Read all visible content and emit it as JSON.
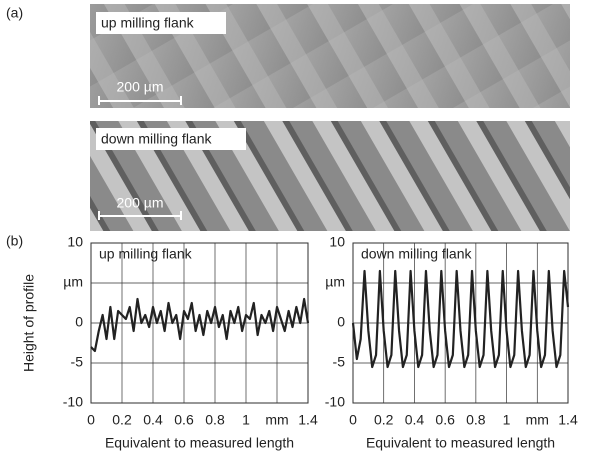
{
  "panel_a": {
    "label": "(a)",
    "images": [
      {
        "label": "up milling flank",
        "scale": "200 µm"
      },
      {
        "label": "down milling flank",
        "scale": "200 µm"
      }
    ]
  },
  "panel_b": {
    "label": "(b)",
    "ylabel": "Height of profile"
  },
  "chart_data": [
    {
      "type": "line",
      "title": "up milling flank",
      "xlabel": "Equivalent to measured length",
      "x": [
        0,
        0.025,
        0.05,
        0.075,
        0.1,
        0.125,
        0.15,
        0.175,
        0.2,
        0.225,
        0.25,
        0.275,
        0.3,
        0.325,
        0.35,
        0.375,
        0.4,
        0.425,
        0.45,
        0.475,
        0.5,
        0.525,
        0.55,
        0.575,
        0.6,
        0.625,
        0.65,
        0.675,
        0.7,
        0.725,
        0.75,
        0.775,
        0.8,
        0.825,
        0.85,
        0.875,
        0.9,
        0.925,
        0.95,
        0.975,
        1,
        1.025,
        1.05,
        1.075,
        1.1,
        1.125,
        1.15,
        1.175,
        1.2,
        1.225,
        1.25,
        1.275,
        1.3,
        1.325,
        1.35,
        1.375,
        1.4
      ],
      "values": [
        -3,
        -3.5,
        -1,
        1,
        -2,
        2,
        -2,
        1.5,
        1,
        0.5,
        2,
        -1,
        3,
        0,
        1,
        -0.5,
        2,
        0,
        1.5,
        -1,
        2.5,
        0,
        1,
        -2,
        1.5,
        0.5,
        2.5,
        -1,
        1,
        -1.5,
        1.5,
        0,
        2,
        -0.5,
        1,
        -2,
        1.5,
        0,
        2,
        -1,
        1,
        0.5,
        2.5,
        -1.5,
        1,
        0,
        1.5,
        -1,
        2,
        0.5,
        -1,
        1.5,
        -0.5,
        2,
        0,
        3,
        0
      ],
      "color": "#222222",
      "xlim": [
        0,
        1.4
      ],
      "ylim": [
        -10,
        10
      ],
      "xticks": [
        0,
        0.2,
        0.4,
        0.6,
        0.8,
        1,
        {
          "value": 1.2,
          "label": "mm"
        },
        1.4
      ],
      "yticks": [
        -10,
        -5,
        0,
        {
          "value": 5,
          "label": "µm"
        },
        10
      ],
      "grid": true
    },
    {
      "type": "line",
      "title": "down milling flank",
      "xlabel": "Equivalent to measured length",
      "x": [
        0,
        0.025,
        0.05,
        0.075,
        0.1,
        0.125,
        0.15,
        0.175,
        0.2,
        0.225,
        0.25,
        0.275,
        0.3,
        0.325,
        0.35,
        0.375,
        0.4,
        0.425,
        0.45,
        0.475,
        0.5,
        0.525,
        0.55,
        0.575,
        0.6,
        0.625,
        0.65,
        0.675,
        0.7,
        0.725,
        0.75,
        0.775,
        0.8,
        0.825,
        0.85,
        0.875,
        0.9,
        0.925,
        0.95,
        0.975,
        1,
        1.025,
        1.05,
        1.075,
        1.1,
        1.125,
        1.15,
        1.175,
        1.2,
        1.225,
        1.25,
        1.275,
        1.3,
        1.325,
        1.35,
        1.375,
        1.4
      ],
      "values": [
        0,
        -4.5,
        -2,
        6.5,
        -1,
        -5.5,
        -4,
        6.5,
        -1,
        -5.5,
        -4,
        6.5,
        -1,
        -5.5,
        -4,
        6.5,
        -1,
        -5.5,
        -4,
        6.5,
        -1,
        -5.5,
        -4,
        6.5,
        -1,
        -5.5,
        -4,
        6.5,
        -1,
        -5.5,
        -4,
        6.5,
        -1,
        -5.5,
        -4,
        6.5,
        -1,
        -5.5,
        -4,
        6.5,
        -1,
        -5.5,
        -4,
        6.5,
        -1,
        -5.5,
        -4,
        6.5,
        -1,
        -5.5,
        -4,
        6.5,
        -1,
        -5.5,
        -4,
        6.5,
        2
      ],
      "color": "#222222",
      "xlim": [
        0,
        1.4
      ],
      "ylim": [
        -10,
        10
      ],
      "xticks": [
        0,
        0.2,
        0.4,
        0.6,
        0.8,
        1,
        {
          "value": 1.2,
          "label": "mm"
        },
        1.4
      ],
      "yticks": [
        -10,
        -5,
        0,
        {
          "value": 5,
          "label": "µm"
        },
        10
      ],
      "grid": true
    }
  ]
}
